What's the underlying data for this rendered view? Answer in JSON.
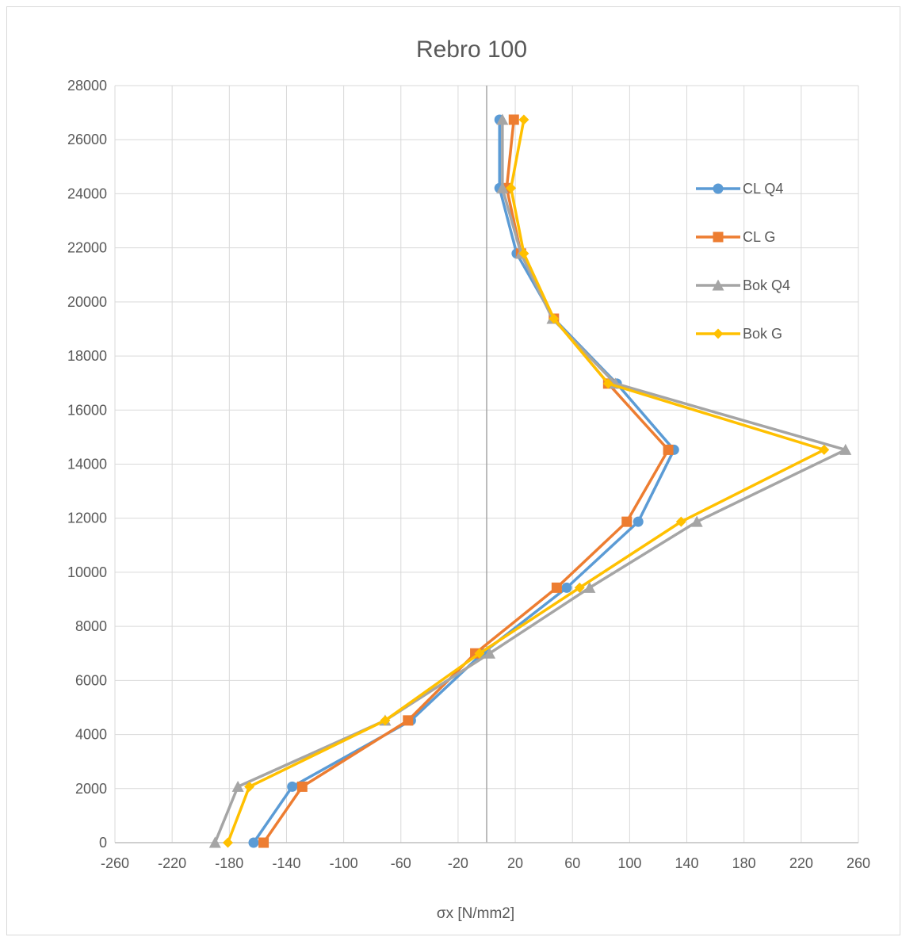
{
  "chart_data": {
    "type": "line",
    "title": "Rebro 100",
    "xlabel": "σx [N/mm2]",
    "ylabel": "",
    "xlim": [
      -260,
      260
    ],
    "ylim": [
      0,
      28000
    ],
    "x_ticks": [
      "-260",
      "-220",
      "-180",
      "-140",
      "-100",
      "-60",
      "-20",
      "20",
      "60",
      "100",
      "140",
      "180",
      "220",
      "260"
    ],
    "y_ticks": [
      "0",
      "2000",
      "4000",
      "6000",
      "8000",
      "10000",
      "12000",
      "14000",
      "16000",
      "18000",
      "20000",
      "22000",
      "24000",
      "26000",
      "28000"
    ],
    "grid": true,
    "legend_position": "right",
    "series": [
      {
        "name": "CL Q4",
        "color": "#5B9BD5",
        "marker": "circle",
        "points": [
          [
            -163,
            0
          ],
          [
            -136,
            2070
          ],
          [
            -53,
            4520
          ],
          [
            -3,
            7000
          ],
          [
            56,
            9430
          ],
          [
            106,
            11870
          ],
          [
            131,
            14530
          ],
          [
            91,
            16980
          ],
          [
            47,
            19380
          ],
          [
            21,
            21790
          ],
          [
            9,
            24210
          ],
          [
            9,
            26740
          ]
        ]
      },
      {
        "name": "CL G",
        "color": "#ED7D31",
        "marker": "square",
        "points": [
          [
            -156,
            0
          ],
          [
            -129,
            2070
          ],
          [
            -55,
            4520
          ],
          [
            -8,
            7000
          ],
          [
            49,
            9430
          ],
          [
            98,
            11870
          ],
          [
            127,
            14530
          ],
          [
            85,
            16980
          ],
          [
            47,
            19380
          ],
          [
            24,
            21790
          ],
          [
            14,
            24210
          ],
          [
            19,
            26740
          ]
        ]
      },
      {
        "name": "Bok Q4",
        "color": "#A5A5A5",
        "marker": "triangle",
        "points": [
          [
            -190,
            0
          ],
          [
            -174,
            2070
          ],
          [
            -71,
            4520
          ],
          [
            2,
            7000
          ],
          [
            72,
            9430
          ],
          [
            147,
            11870
          ],
          [
            251,
            14530
          ],
          [
            90,
            16980
          ],
          [
            46,
            19380
          ],
          [
            24,
            21790
          ],
          [
            11,
            24210
          ],
          [
            11,
            26740
          ]
        ]
      },
      {
        "name": "Bok G",
        "color": "#FFC000",
        "marker": "diamond",
        "points": [
          [
            -181,
            0
          ],
          [
            -166,
            2070
          ],
          [
            -71,
            4520
          ],
          [
            -5,
            7000
          ],
          [
            65,
            9430
          ],
          [
            136,
            11870
          ],
          [
            236,
            14530
          ],
          [
            85,
            16980
          ],
          [
            47,
            19380
          ],
          [
            26,
            21790
          ],
          [
            17,
            24210
          ],
          [
            26,
            26740
          ]
        ]
      }
    ]
  }
}
